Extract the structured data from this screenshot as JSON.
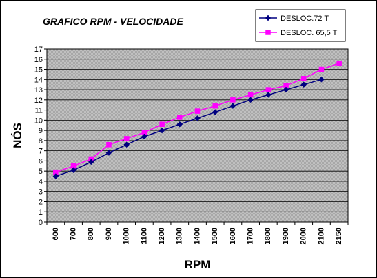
{
  "chart_data": {
    "type": "line",
    "title": "GRAFICO RPM - VELOCIDADE",
    "xlabel": "RPM",
    "ylabel": "NÓS",
    "categories": [
      "600",
      "700",
      "800",
      "900",
      "1000",
      "1100",
      "1200",
      "1300",
      "1400",
      "1500",
      "1600",
      "1700",
      "1800",
      "1900",
      "2000",
      "2100",
      "2150"
    ],
    "ylim": [
      0,
      17
    ],
    "yticks": [
      "0",
      "1",
      "2",
      "3",
      "4",
      "5",
      "6",
      "7",
      "8",
      "9",
      "10",
      "11",
      "12",
      "13",
      "14",
      "15",
      "16",
      "17"
    ],
    "grid": true,
    "legend_position": "top-right",
    "series": [
      {
        "name": "DESLOC.72 T",
        "color": "#000080",
        "marker": "diamond",
        "values": [
          4.5,
          5.1,
          5.9,
          6.8,
          7.6,
          8.4,
          9.0,
          9.6,
          10.2,
          10.8,
          11.4,
          12.0,
          12.5,
          13.0,
          13.5,
          14.0,
          null
        ]
      },
      {
        "name": "DESLOC. 65,5 T",
        "color": "#ff00ff",
        "marker": "square",
        "values": [
          4.9,
          5.5,
          6.2,
          7.6,
          8.2,
          8.8,
          9.6,
          10.3,
          10.9,
          11.4,
          12.0,
          12.5,
          13.0,
          13.4,
          14.1,
          15.0,
          15.6
        ]
      }
    ]
  }
}
